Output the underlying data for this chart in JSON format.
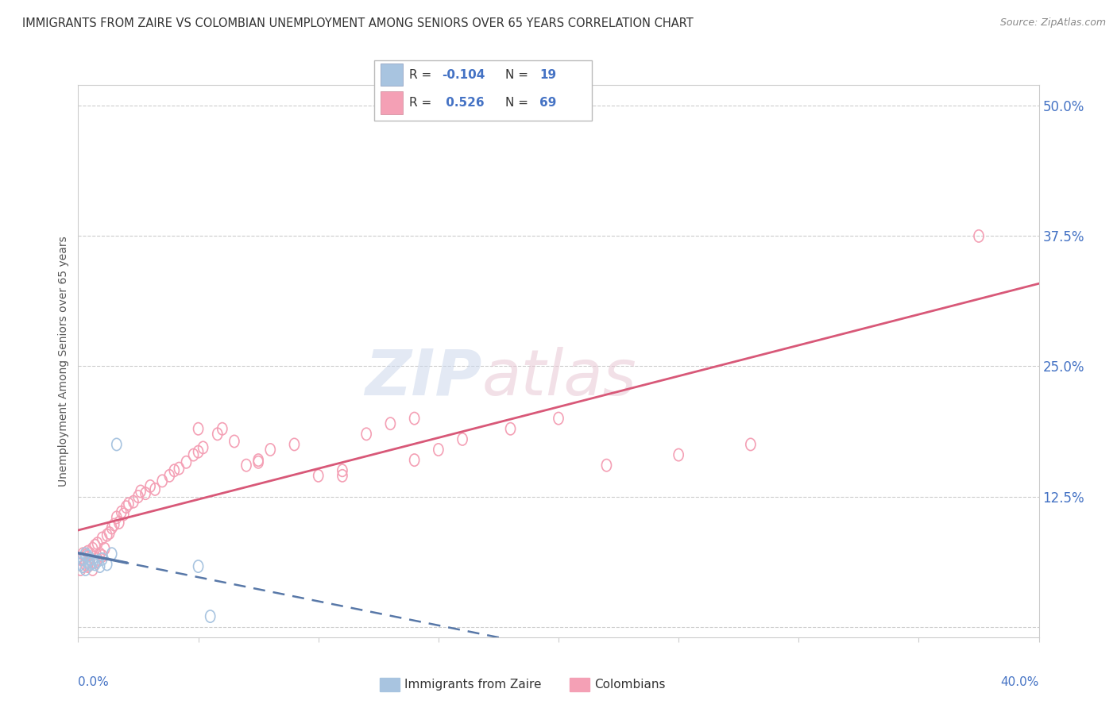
{
  "title": "IMMIGRANTS FROM ZAIRE VS COLOMBIAN UNEMPLOYMENT AMONG SENIORS OVER 65 YEARS CORRELATION CHART",
  "source": "Source: ZipAtlas.com",
  "ylabel": "Unemployment Among Seniors over 65 years",
  "yticks": [
    0.0,
    0.125,
    0.25,
    0.375,
    0.5
  ],
  "ytick_labels": [
    "",
    "12.5%",
    "25.0%",
    "37.5%",
    "50.0%"
  ],
  "xlim": [
    0.0,
    0.4
  ],
  "ylim": [
    -0.01,
    0.52
  ],
  "color_blue": "#a8c4e0",
  "color_pink": "#f4a0b5",
  "color_blue_line": "#5878a8",
  "color_pink_line": "#d85878",
  "watermark_zip": "ZIP",
  "watermark_atlas": "atlas",
  "blue_scatter_x": [
    0.001,
    0.002,
    0.002,
    0.003,
    0.003,
    0.004,
    0.004,
    0.005,
    0.005,
    0.006,
    0.007,
    0.008,
    0.009,
    0.01,
    0.012,
    0.014,
    0.016,
    0.05,
    0.055
  ],
  "blue_scatter_y": [
    0.06,
    0.058,
    0.065,
    0.055,
    0.07,
    0.062,
    0.068,
    0.06,
    0.065,
    0.062,
    0.06,
    0.063,
    0.058,
    0.065,
    0.06,
    0.07,
    0.175,
    0.058,
    0.01
  ],
  "pink_scatter_x": [
    0.001,
    0.001,
    0.002,
    0.002,
    0.003,
    0.003,
    0.004,
    0.004,
    0.005,
    0.005,
    0.005,
    0.006,
    0.006,
    0.007,
    0.007,
    0.008,
    0.008,
    0.009,
    0.01,
    0.01,
    0.011,
    0.012,
    0.013,
    0.014,
    0.015,
    0.016,
    0.017,
    0.018,
    0.019,
    0.02,
    0.021,
    0.023,
    0.025,
    0.026,
    0.028,
    0.03,
    0.032,
    0.035,
    0.038,
    0.04,
    0.042,
    0.045,
    0.048,
    0.05,
    0.052,
    0.058,
    0.06,
    0.065,
    0.07,
    0.075,
    0.08,
    0.09,
    0.1,
    0.11,
    0.12,
    0.13,
    0.14,
    0.15,
    0.16,
    0.18,
    0.2,
    0.22,
    0.14,
    0.11,
    0.075,
    0.05,
    0.25,
    0.28,
    0.375
  ],
  "pink_scatter_y": [
    0.055,
    0.065,
    0.058,
    0.07,
    0.06,
    0.068,
    0.058,
    0.072,
    0.06,
    0.065,
    0.07,
    0.055,
    0.075,
    0.062,
    0.078,
    0.065,
    0.08,
    0.07,
    0.068,
    0.085,
    0.075,
    0.088,
    0.09,
    0.095,
    0.098,
    0.105,
    0.1,
    0.11,
    0.108,
    0.115,
    0.118,
    0.12,
    0.125,
    0.13,
    0.128,
    0.135,
    0.132,
    0.14,
    0.145,
    0.15,
    0.152,
    0.158,
    0.165,
    0.168,
    0.172,
    0.185,
    0.19,
    0.178,
    0.155,
    0.16,
    0.17,
    0.175,
    0.145,
    0.15,
    0.185,
    0.195,
    0.16,
    0.17,
    0.18,
    0.19,
    0.2,
    0.155,
    0.2,
    0.145,
    0.158,
    0.19,
    0.165,
    0.175,
    0.375
  ],
  "legend_blue_r": "-0.104",
  "legend_blue_n": "19",
  "legend_pink_r": "0.526",
  "legend_pink_n": "69",
  "grid_color": "#cccccc",
  "spine_color": "#cccccc",
  "tick_color": "#4472c4",
  "title_color": "#333333",
  "source_color": "#888888",
  "ylabel_color": "#555555"
}
